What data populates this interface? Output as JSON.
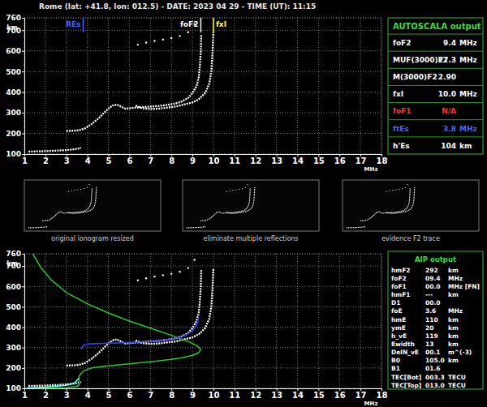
{
  "header": {
    "title": "Rome (lat: +41.8, lon: 012.5) - DATE: 2023 04 29 - TIME (UT): 11:15"
  },
  "chart_data": [
    {
      "type": "scatter",
      "x_label": "MHz",
      "y_label": "km",
      "xlim": [
        1,
        18
      ],
      "xticks": [
        1,
        2,
        3,
        4,
        5,
        6,
        7,
        8,
        9,
        10,
        11,
        12,
        13,
        14,
        15,
        16,
        17,
        18
      ],
      "ylim": [
        100,
        760
      ],
      "yticks": [
        100,
        200,
        300,
        400,
        500,
        600,
        700,
        760
      ],
      "grid": true,
      "annotations": [
        {
          "text": "REs",
          "x": 3.8,
          "color": "#4466ff"
        },
        {
          "text": "foF2",
          "x": 9.4,
          "color": "#ffffff"
        },
        {
          "text": "fxI",
          "x": 10.0,
          "color": "#ffff44"
        }
      ],
      "series": [
        {
          "type": "line",
          "line_style": "dotted",
          "color": "#ffffff",
          "x": [
            1.2,
            1.6,
            2.0,
            2.4,
            2.8,
            3.2,
            3.5,
            3.7
          ],
          "values": [
            112,
            113,
            114,
            116,
            118,
            121,
            125,
            130
          ]
        },
        {
          "type": "line",
          "line_style": "dotted",
          "color": "#ffffff",
          "x": [
            3.0,
            3.3,
            3.6,
            3.9,
            4.2,
            4.5,
            4.8,
            5.0,
            5.2,
            5.4,
            5.6,
            5.8,
            6.0,
            6.3,
            6.6,
            7.0,
            7.4,
            7.8,
            8.2,
            8.5,
            8.8,
            9.0,
            9.2,
            9.3,
            9.35,
            9.4,
            9.42
          ],
          "values": [
            212,
            213,
            215,
            225,
            245,
            270,
            300,
            320,
            335,
            340,
            330,
            320,
            322,
            325,
            327,
            330,
            333,
            338,
            345,
            355,
            372,
            395,
            430,
            470,
            520,
            600,
            680
          ]
        },
        {
          "type": "line",
          "line_style": "dotted",
          "color": "#ffffff",
          "x": [
            6.3,
            6.6,
            7.0,
            7.4,
            7.8,
            8.2,
            8.6,
            9.0,
            9.3,
            9.6,
            9.8,
            9.9,
            9.95,
            10.0
          ],
          "values": [
            335,
            322,
            318,
            320,
            325,
            330,
            340,
            350,
            365,
            395,
            440,
            500,
            580,
            690
          ]
        },
        {
          "type": "scatter",
          "marker": "dot",
          "color": "#ffffff",
          "x": [
            6.4,
            6.8,
            7.2,
            7.6,
            8.0,
            8.4,
            8.8,
            9.1
          ],
          "values": [
            630,
            640,
            648,
            655,
            662,
            672,
            690,
            730
          ]
        }
      ]
    },
    {
      "type": "scatter",
      "x_label": "MHz",
      "y_label": "km",
      "xlim": [
        1,
        18
      ],
      "xticks": [
        1,
        2,
        3,
        4,
        5,
        6,
        7,
        8,
        9,
        10,
        11,
        12,
        13,
        14,
        15,
        16,
        17,
        18
      ],
      "ylim": [
        100,
        760
      ],
      "yticks": [
        100,
        200,
        300,
        400,
        500,
        600,
        700,
        760
      ],
      "grid": true,
      "series": [
        {
          "type": "line",
          "line_style": "dotted",
          "color": "#ffffff",
          "x": [
            1.2,
            1.6,
            2.0,
            2.4,
            2.8,
            3.2,
            3.5,
            3.7
          ],
          "values": [
            112,
            113,
            114,
            116,
            118,
            121,
            125,
            130
          ]
        },
        {
          "type": "line",
          "line_style": "dotted",
          "color": "#ffffff",
          "x": [
            3.0,
            3.3,
            3.6,
            3.9,
            4.2,
            4.5,
            4.8,
            5.0,
            5.2,
            5.4,
            5.6,
            5.8,
            6.0,
            6.3,
            6.6,
            7.0,
            7.4,
            7.8,
            8.2,
            8.5,
            8.8,
            9.0,
            9.2,
            9.3,
            9.35,
            9.4,
            9.42
          ],
          "values": [
            212,
            213,
            215,
            225,
            245,
            270,
            300,
            320,
            335,
            340,
            330,
            320,
            322,
            325,
            327,
            330,
            333,
            338,
            345,
            355,
            372,
            395,
            430,
            470,
            520,
            600,
            680
          ]
        },
        {
          "type": "line",
          "line_style": "dotted",
          "color": "#ffffff",
          "x": [
            6.3,
            6.6,
            7.0,
            7.4,
            7.8,
            8.2,
            8.6,
            9.0,
            9.3,
            9.6,
            9.8,
            9.9,
            9.95,
            10.0
          ],
          "values": [
            335,
            322,
            318,
            320,
            325,
            330,
            340,
            350,
            365,
            395,
            440,
            500,
            580,
            690
          ]
        },
        {
          "type": "scatter",
          "marker": "dot",
          "color": "#ffffff",
          "x": [
            6.4,
            6.8,
            7.2,
            7.6,
            8.0,
            8.4,
            8.8,
            9.1
          ],
          "values": [
            630,
            640,
            648,
            655,
            662,
            672,
            690,
            730
          ]
        },
        {
          "type": "line",
          "line_style": "solid",
          "color": "#22cc22",
          "x": [
            1.4,
            1.8,
            2.3,
            3.0,
            4.0,
            5.0,
            6.0,
            7.0,
            8.0,
            8.8,
            9.2,
            9.4,
            9.3,
            9.0,
            8.5,
            8.0,
            7.0,
            6.0,
            5.0,
            4.2,
            3.8,
            3.6,
            3.6,
            3.4,
            3.0,
            2.0,
            1.2
          ],
          "values": [
            760,
            690,
            630,
            570,
            515,
            470,
            430,
            395,
            360,
            330,
            310,
            292,
            275,
            262,
            250,
            242,
            230,
            220,
            210,
            200,
            185,
            160,
            115,
            108,
            104,
            101,
            100
          ]
        },
        {
          "type": "line",
          "line_style": "solid",
          "color": "#3344ff",
          "x": [
            3.7,
            3.8,
            4.0,
            4.5,
            5.0,
            5.5,
            6.0,
            7.0,
            8.0,
            8.5,
            9.0,
            9.2,
            9.3
          ],
          "values": [
            290,
            310,
            318,
            320,
            322,
            323,
            325,
            330,
            340,
            352,
            380,
            410,
            450
          ]
        },
        {
          "type": "line",
          "line_style": "solid",
          "color": "#66ffff",
          "x": [
            1.1,
            2.0,
            3.0,
            3.4,
            3.6
          ],
          "values": [
            102,
            106,
            115,
            128,
            150
          ]
        }
      ]
    }
  ],
  "autoscala_output": {
    "title": "AUTOSCALA output",
    "rows": [
      {
        "name": "foF2",
        "value": "9.4",
        "unit": "MHz"
      },
      {
        "name": "MUF(3000)F2",
        "value": "27.3",
        "unit": "MHz"
      },
      {
        "name": "M(3000)F2",
        "value": "2.90"
      },
      {
        "name": "fxI",
        "value": "10.0",
        "unit": "MHz"
      },
      {
        "name": "foF1",
        "value": "N/A",
        "color": "#ff3030"
      },
      {
        "name": "ftEs",
        "value": "3.8",
        "unit": "MHz",
        "color": "#4466ff"
      },
      {
        "name": "h'Es",
        "value": "104",
        "unit": "km"
      }
    ]
  },
  "thumbnails": [
    {
      "caption": "original ionogram resized"
    },
    {
      "caption": "eliminate multiple reflections"
    },
    {
      "caption": "evidence F2 trace"
    }
  ],
  "aip_output": {
    "title": "AIP output",
    "rows": [
      {
        "name": "hmF2",
        "value": "292",
        "unit": "km"
      },
      {
        "name": "foF2",
        "value": "09.4",
        "unit": "MHz"
      },
      {
        "name": "foF1",
        "value": "00.0",
        "unit": "MHz [FN]"
      },
      {
        "name": "hmF1",
        "value": "---",
        "unit": "km"
      },
      {
        "name": "D1",
        "value": "00.0"
      },
      {
        "name": "foE",
        "value": "3.6",
        "unit": "MHz"
      },
      {
        "name": "hmE",
        "value": "110",
        "unit": "km"
      },
      {
        "name": "ymE",
        "value": "20",
        "unit": "km"
      },
      {
        "name": "h_vE",
        "value": "119",
        "unit": "km"
      },
      {
        "name": "Ewidth",
        "value": "13",
        "unit": "km"
      },
      {
        "name": "DelN_vE",
        "value": "00.1",
        "unit": "m^(-3)"
      },
      {
        "name": "B0",
        "value": "105.0",
        "unit": "km"
      },
      {
        "name": "B1",
        "value": "01.6"
      },
      {
        "name": "TEC[Bot]",
        "value": "003.3",
        "unit": "TECU"
      },
      {
        "name": "TEC[Top]",
        "value": "013.0",
        "unit": "TECU"
      }
    ]
  }
}
